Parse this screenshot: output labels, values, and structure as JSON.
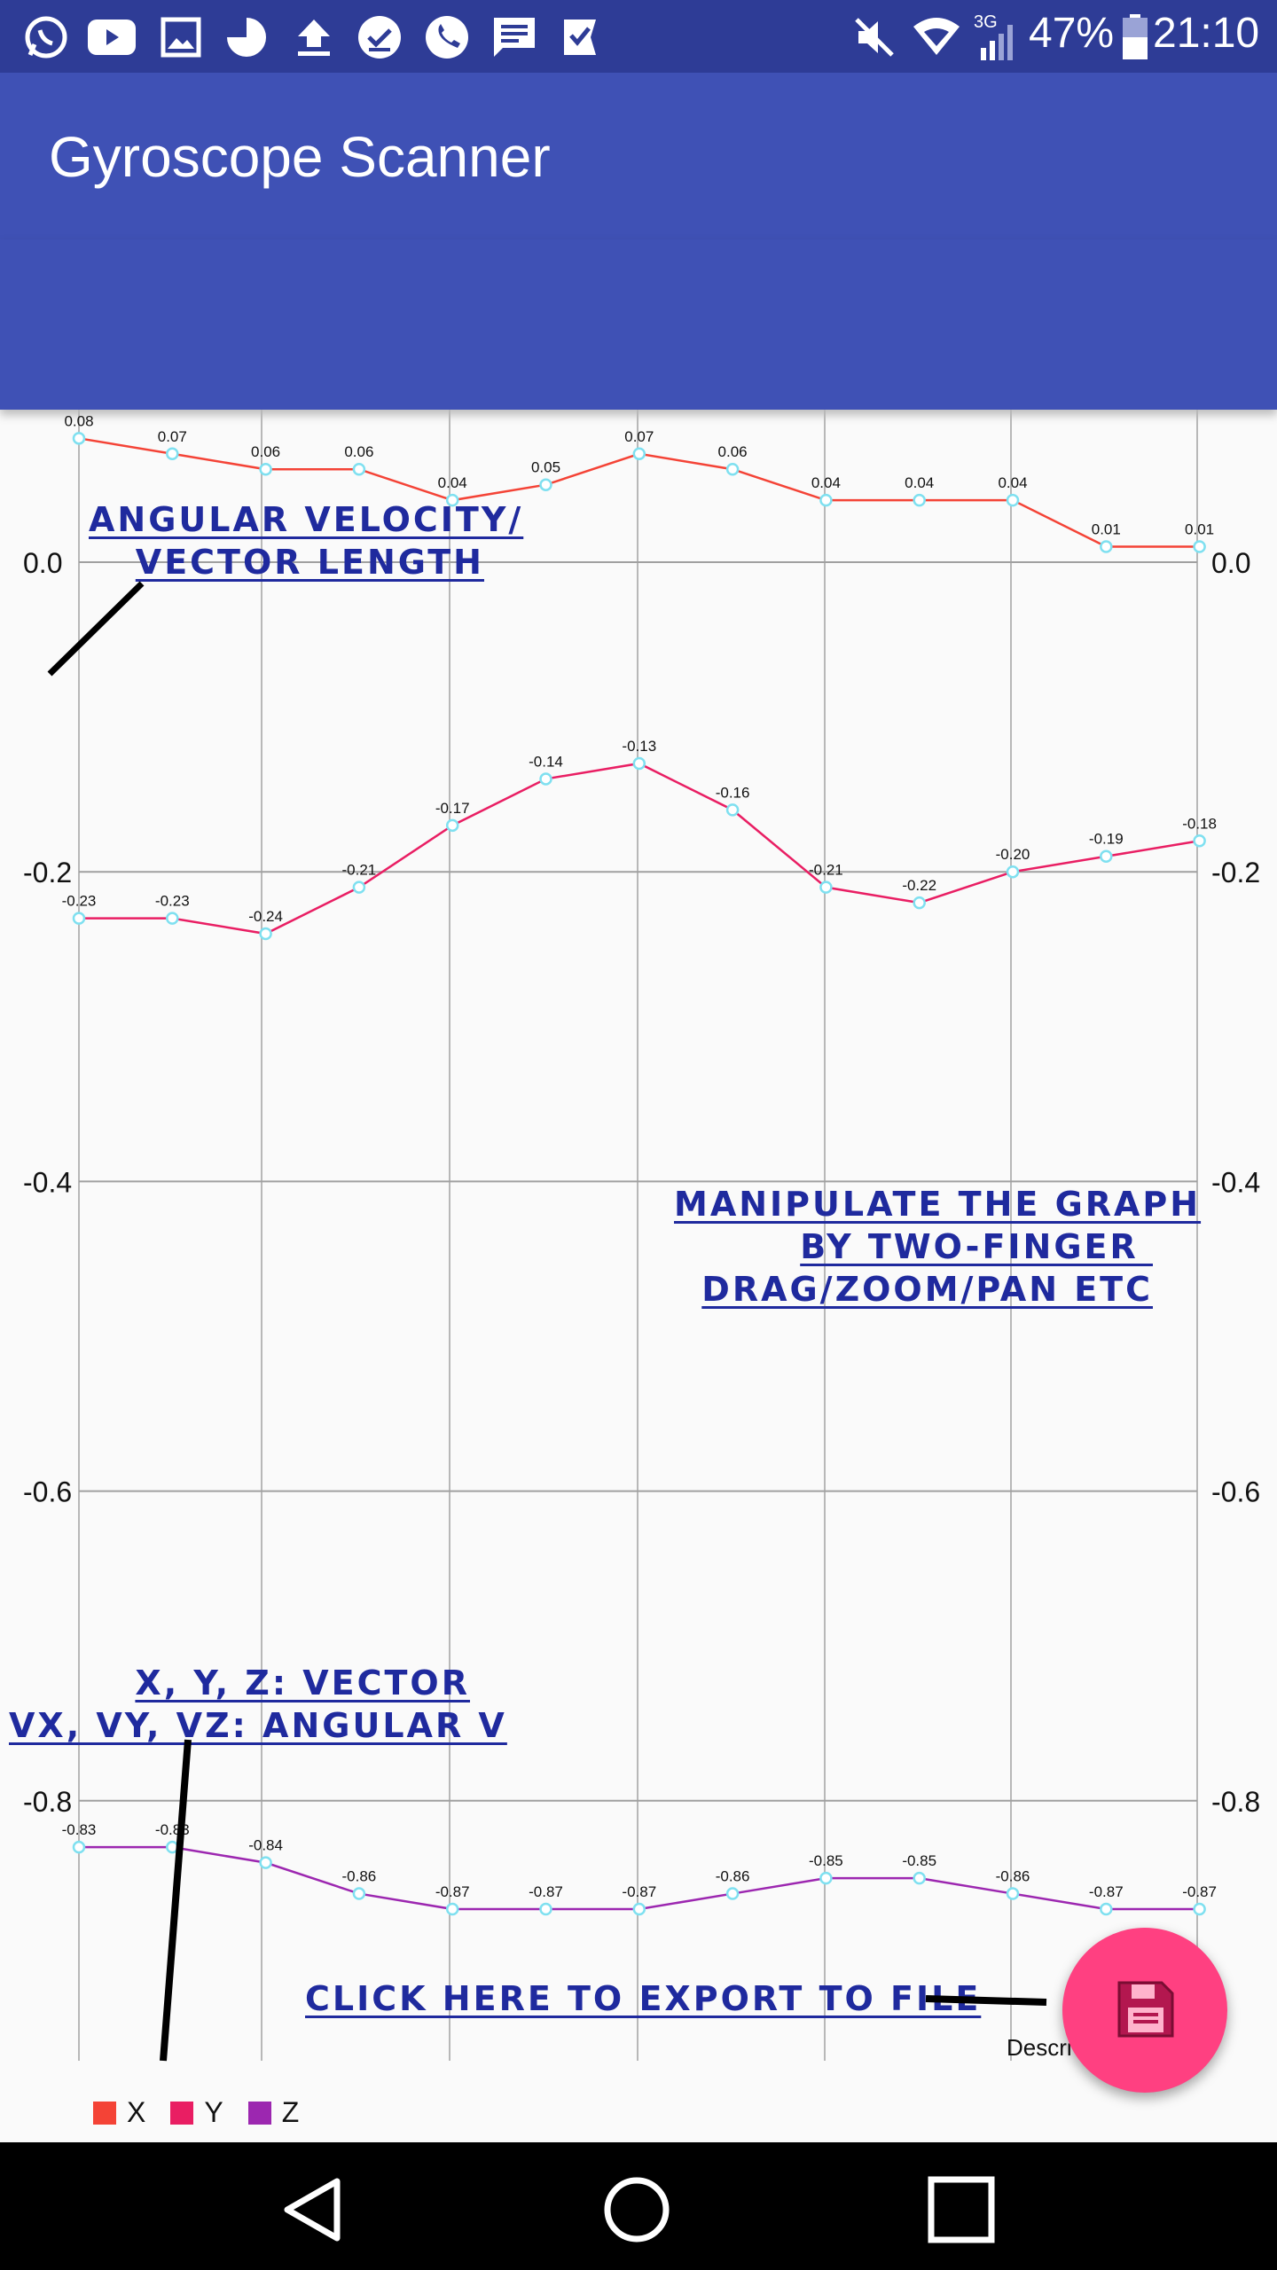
{
  "status_bar": {
    "battery": "47%",
    "time": "21:10",
    "network": "3G",
    "notification_icons": [
      "whatsapp-icon",
      "youtube-icon",
      "gallery-icon",
      "pie-icon",
      "upload-icon",
      "check-circle-icon",
      "phone-icon",
      "message-icon",
      "check-flag-icon"
    ],
    "system_icons": [
      "mute-icon",
      "wifi-icon",
      "signal-icon",
      "battery-icon"
    ]
  },
  "app_bar": {
    "title": "Gyroscope Scanner"
  },
  "chart_data": {
    "type": "line",
    "x": [
      1,
      2,
      3,
      4,
      5,
      6,
      7,
      8,
      9,
      10,
      11,
      12,
      13
    ],
    "ylim": [
      -0.98,
      0.1
    ],
    "y_ticks": [
      "0.0",
      "-0.2",
      "-0.4",
      "-0.6",
      "-0.8"
    ],
    "y_tick_values": [
      0.0,
      -0.2,
      -0.4,
      -0.6,
      -0.8
    ],
    "grid": true,
    "legend_position": "bottom-left",
    "description_label": "Descri",
    "series": [
      {
        "name": "X",
        "color": "#f44336",
        "values": [
          0.08,
          0.07,
          0.06,
          0.06,
          0.04,
          0.05,
          0.07,
          0.06,
          0.04,
          0.04,
          0.04,
          0.01,
          0.01
        ],
        "labels": [
          "0.08",
          "0.07",
          "0.06",
          "0.06",
          "0.04",
          "0.05",
          "0.07",
          "0.06",
          "0.04",
          "0.04",
          "0.04",
          "0.01",
          "0.01"
        ]
      },
      {
        "name": "Y",
        "color": "#e91e63",
        "values": [
          -0.23,
          -0.23,
          -0.24,
          -0.21,
          -0.17,
          -0.14,
          -0.13,
          -0.16,
          -0.21,
          -0.22,
          -0.2,
          -0.19,
          -0.18
        ],
        "labels": [
          "-0.23",
          "-0.23",
          "-0.24",
          "-0.21",
          "-0.17",
          "-0.14",
          "-0.13",
          "-0.16",
          "-0.21",
          "-0.22",
          "-0.20",
          "-0.19",
          "-0.18"
        ]
      },
      {
        "name": "Z",
        "color": "#9c27b0",
        "values": [
          -0.83,
          -0.83,
          -0.84,
          -0.86,
          -0.87,
          -0.87,
          -0.87,
          -0.86,
          -0.85,
          -0.85,
          -0.86,
          -0.87,
          -0.87
        ],
        "labels": [
          "-0.83",
          "-0.83",
          "-0.84",
          "-0.86",
          "-0.87",
          "-0.87",
          "-0.87",
          "-0.86",
          "-0.85",
          "-0.85",
          "-0.86",
          "-0.87",
          "-0.87"
        ]
      }
    ]
  },
  "annotations": {
    "angular_velocity": [
      "ANGULAR VELOCITY/",
      "VECTOR LENGTH"
    ],
    "manipulate": [
      "MANIPULATE THE GRAPH",
      "BY TWO-FINGER ",
      "DRAG/ZOOM/PAN ETC"
    ],
    "vectors": [
      "X, Y, Z: VECTOR",
      "VX, VY, VZ: ANGULAR V"
    ],
    "export": "CLICK HERE TO EXPORT TO FILE"
  },
  "fab": {
    "icon": "save-icon"
  },
  "nav_bar": {
    "buttons": [
      "back-icon",
      "home-icon",
      "recents-icon"
    ]
  }
}
